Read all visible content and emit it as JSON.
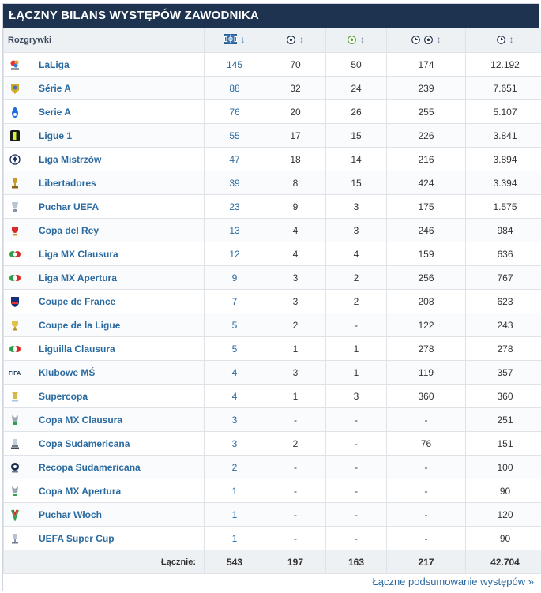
{
  "title": "ŁĄCZNY BILANS WYSTĘPÓW ZAWODNIKA",
  "table": {
    "header": {
      "competition": "Rozgrywki",
      "sort_arrow": "↓",
      "neutral_arrow": "↕"
    },
    "rows": [
      {
        "name": "LaLiga",
        "logo": "laliga-logo",
        "apps": "145",
        "goals": "70",
        "assists": "50",
        "min_per_goal": "174",
        "minutes": "12.192"
      },
      {
        "name": "Série A",
        "logo": "brasileirao-logo",
        "apps": "88",
        "goals": "32",
        "assists": "24",
        "min_per_goal": "239",
        "minutes": "7.651"
      },
      {
        "name": "Serie A",
        "logo": "serie-a-logo",
        "apps": "76",
        "goals": "20",
        "assists": "26",
        "min_per_goal": "255",
        "minutes": "5.107"
      },
      {
        "name": "Ligue 1",
        "logo": "ligue1-logo",
        "apps": "55",
        "goals": "17",
        "assists": "15",
        "min_per_goal": "226",
        "minutes": "3.841"
      },
      {
        "name": "Liga Mistrzów",
        "logo": "champions-league-logo",
        "apps": "47",
        "goals": "18",
        "assists": "14",
        "min_per_goal": "216",
        "minutes": "3.894"
      },
      {
        "name": "Libertadores",
        "logo": "libertadores-logo",
        "apps": "39",
        "goals": "8",
        "assists": "15",
        "min_per_goal": "424",
        "minutes": "3.394"
      },
      {
        "name": "Puchar UEFA",
        "logo": "uefa-cup-logo",
        "apps": "23",
        "goals": "9",
        "assists": "3",
        "min_per_goal": "175",
        "minutes": "1.575"
      },
      {
        "name": "Copa del Rey",
        "logo": "copa-del-rey-logo",
        "apps": "13",
        "goals": "4",
        "assists": "3",
        "min_per_goal": "246",
        "minutes": "984"
      },
      {
        "name": "Liga MX Clausura",
        "logo": "liga-mx-logo",
        "apps": "12",
        "goals": "4",
        "assists": "4",
        "min_per_goal": "159",
        "minutes": "636"
      },
      {
        "name": "Liga MX Apertura",
        "logo": "liga-mx-logo",
        "apps": "9",
        "goals": "3",
        "assists": "2",
        "min_per_goal": "256",
        "minutes": "767"
      },
      {
        "name": "Coupe de France",
        "logo": "coupe-de-france-logo",
        "apps": "7",
        "goals": "3",
        "assists": "2",
        "min_per_goal": "208",
        "minutes": "623"
      },
      {
        "name": "Coupe de la Ligue",
        "logo": "coupe-de-la-ligue-logo",
        "apps": "5",
        "goals": "2",
        "assists": "-",
        "min_per_goal": "122",
        "minutes": "243"
      },
      {
        "name": "Liguilla Clausura",
        "logo": "liga-mx-logo",
        "apps": "5",
        "goals": "1",
        "assists": "1",
        "min_per_goal": "278",
        "minutes": "278"
      },
      {
        "name": "Klubowe MŚ",
        "logo": "fifa-logo",
        "apps": "4",
        "goals": "3",
        "assists": "1",
        "min_per_goal": "119",
        "minutes": "357"
      },
      {
        "name": "Supercopa",
        "logo": "supercopa-logo",
        "apps": "4",
        "goals": "1",
        "assists": "3",
        "min_per_goal": "360",
        "minutes": "360"
      },
      {
        "name": "Copa MX Clausura",
        "logo": "copa-mx-logo",
        "apps": "3",
        "goals": "-",
        "assists": "-",
        "min_per_goal": "-",
        "minutes": "251"
      },
      {
        "name": "Copa Sudamericana",
        "logo": "sudamericana-logo",
        "apps": "3",
        "goals": "2",
        "assists": "-",
        "min_per_goal": "76",
        "minutes": "151"
      },
      {
        "name": "Recopa Sudamericana",
        "logo": "recopa-logo",
        "apps": "2",
        "goals": "-",
        "assists": "-",
        "min_per_goal": "-",
        "minutes": "100"
      },
      {
        "name": "Copa MX Apertura",
        "logo": "copa-mx-logo",
        "apps": "1",
        "goals": "-",
        "assists": "-",
        "min_per_goal": "-",
        "minutes": "90"
      },
      {
        "name": "Puchar Włoch",
        "logo": "coppa-italia-logo",
        "apps": "1",
        "goals": "-",
        "assists": "-",
        "min_per_goal": "-",
        "minutes": "120"
      },
      {
        "name": "UEFA Super Cup",
        "logo": "uefa-super-cup-logo",
        "apps": "1",
        "goals": "-",
        "assists": "-",
        "min_per_goal": "-",
        "minutes": "90"
      }
    ],
    "totals": {
      "label": "Łącznie:",
      "apps": "543",
      "goals": "197",
      "assists": "163",
      "min_per_goal": "217",
      "minutes": "42.704"
    }
  },
  "footer_link": "Łączne podsumowanie występów »",
  "colors": {
    "title_bg": "#1d3350",
    "link": "#2a6aa0",
    "header_bg": "#eef1f4"
  }
}
